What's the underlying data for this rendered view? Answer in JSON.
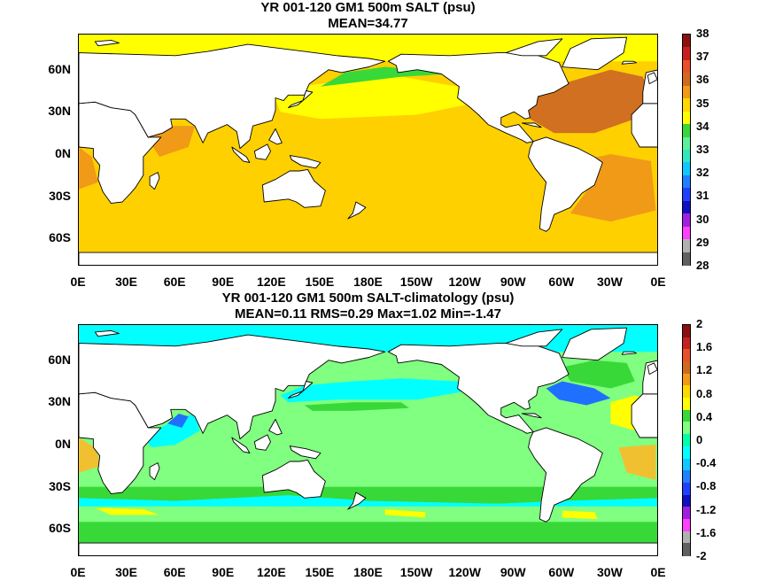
{
  "panels": [
    {
      "title": "YR 001-120 GM1 500m SALT (psu)",
      "subtitle": "MEAN=34.77",
      "field": "salt",
      "colorbar": {
        "labels": [
          "38",
          "37",
          "36",
          "35",
          "34",
          "33",
          "32",
          "31",
          "30",
          "29",
          "28"
        ],
        "colors": [
          "#8c1010",
          "#c82020",
          "#e8502a",
          "#d06a20",
          "#f09a18",
          "#ffd800",
          "#ffff00",
          "#38d838",
          "#5cf09a",
          "#30e8c0",
          "#10c8ff",
          "#2080ff",
          "#2040ff",
          "#1010c0",
          "#a020e0",
          "#ff40ff",
          "#b0b0b0",
          "#606060"
        ]
      }
    },
    {
      "title": "YR 001-120 GM1 500m SALT-climatology (psu)",
      "subtitle": "MEAN=0.11   RMS=0.29   Max=1.02   Min=-1.47",
      "field": "anomaly",
      "colorbar": {
        "labels": [
          "2",
          "1.6",
          "1.2",
          "0.8",
          "0.4",
          "0",
          "-0.4",
          "-0.8",
          "-1.2",
          "-1.6",
          "-2"
        ],
        "colors": [
          "#8c1010",
          "#c82020",
          "#e8502a",
          "#d06a20",
          "#f09a18",
          "#ffd800",
          "#ffff00",
          "#38d838",
          "#80ff80",
          "#00ffaa",
          "#00ffff",
          "#10c8ff",
          "#2080ff",
          "#2040ff",
          "#1010c0",
          "#a020e0",
          "#ff40ff",
          "#b0b0b0",
          "#606060"
        ]
      }
    }
  ],
  "lat_labels": [
    "60N",
    "30N",
    "0N",
    "30S",
    "60S"
  ],
  "lon_labels": [
    "0E",
    "30E",
    "60E",
    "90E",
    "120E",
    "150E",
    "180E",
    "150W",
    "120W",
    "90W",
    "60W",
    "30W",
    "0E"
  ],
  "palette": {
    "salt_background": "#ffd000",
    "salt_pacific_north": "#ffff00",
    "salt_arctic": "#ffff00",
    "salt_atlantic_north": "#d07020",
    "salt_atlantic_south": "#f09a18",
    "salt_bering": "#38d838",
    "salt_indian_west": "#f09a18",
    "anom_background": "#80ff80",
    "anom_south_band": "#38d838",
    "anom_cyan": "#00ffff",
    "anom_blue": "#2070ff",
    "anom_yellow": "#ffff00",
    "anom_orange": "#f0c030",
    "land": "#ffffff"
  }
}
